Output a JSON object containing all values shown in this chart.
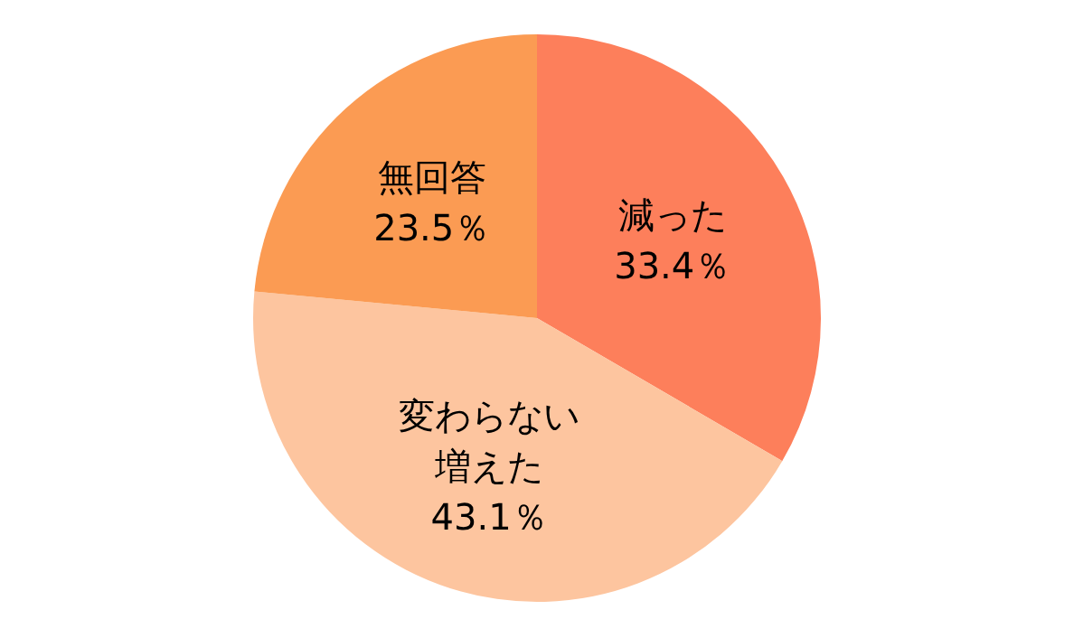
{
  "chart_data": {
    "type": "pie",
    "categories": [
      "減った",
      "変わらない増えた",
      "無回答"
    ],
    "values": [
      33.4,
      43.1,
      23.5
    ],
    "colors": [
      "#fd7f5b",
      "#fdc59f",
      "#fb9b53"
    ],
    "value_labels": [
      "33.4％",
      "43.1％",
      "23.5％"
    ]
  }
}
